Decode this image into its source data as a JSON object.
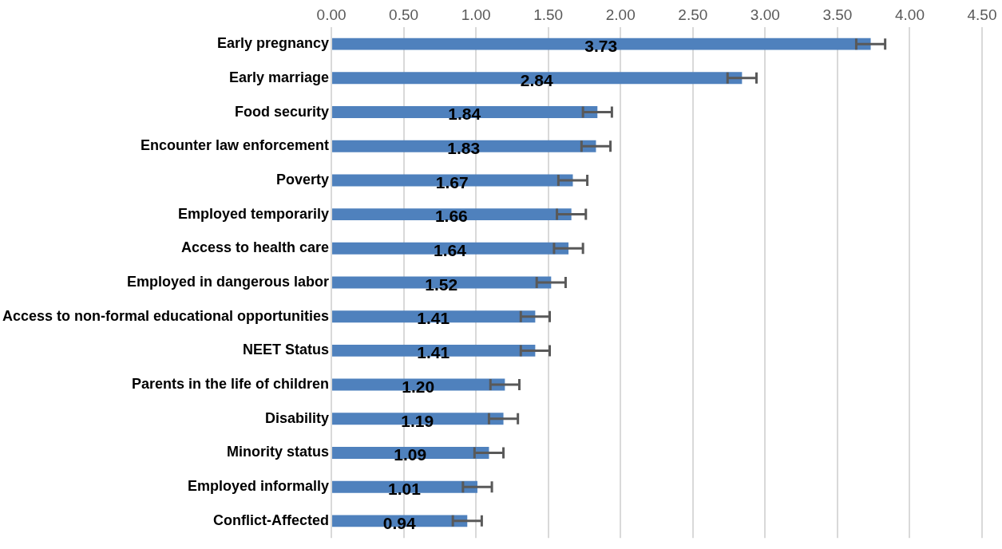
{
  "chart_data": {
    "type": "bar",
    "orientation": "horizontal",
    "categories": [
      "Early pregnancy",
      "Early marriage",
      "Food security",
      "Encounter law enforcement",
      "Poverty",
      "Employed temporarily",
      "Access to health care",
      "Employed in dangerous labor",
      "Access to non-formal educational opportunities",
      "NEET Status",
      "Parents in the life of children",
      "Disability",
      "Minority status",
      "Employed informally",
      "Conflict-Affected"
    ],
    "values": [
      3.73,
      2.84,
      1.84,
      1.83,
      1.67,
      1.66,
      1.64,
      1.52,
      1.41,
      1.41,
      1.2,
      1.19,
      1.09,
      1.01,
      0.94
    ],
    "value_labels": [
      "3.73",
      "2.84",
      "1.84",
      "1.83",
      "1.67",
      "1.66",
      "1.64",
      "1.52",
      "1.41",
      "1.41",
      "1.20",
      "1.19",
      "1.09",
      "1.01",
      "0.94"
    ],
    "errors": [
      0.1,
      0.1,
      0.1,
      0.1,
      0.1,
      0.1,
      0.1,
      0.1,
      0.1,
      0.1,
      0.1,
      0.1,
      0.1,
      0.1,
      0.1
    ],
    "color": "#4f81bd",
    "xlim": [
      0,
      4.5
    ],
    "xticks": [
      {
        "value": 0,
        "label": "0.00"
      },
      {
        "value": 0.5,
        "label": "0.50"
      },
      {
        "value": 1,
        "label": "1.00"
      },
      {
        "value": 1.5,
        "label": "1.50"
      },
      {
        "value": 2,
        "label": "2.00"
      },
      {
        "value": 2.5,
        "label": "2.50"
      },
      {
        "value": 3,
        "label": "3.00"
      },
      {
        "value": 3.5,
        "label": "3.50"
      },
      {
        "value": 4,
        "label": "4.00"
      },
      {
        "value": 4.5,
        "label": "4.50"
      }
    ],
    "grid": "x",
    "legend": false
  }
}
